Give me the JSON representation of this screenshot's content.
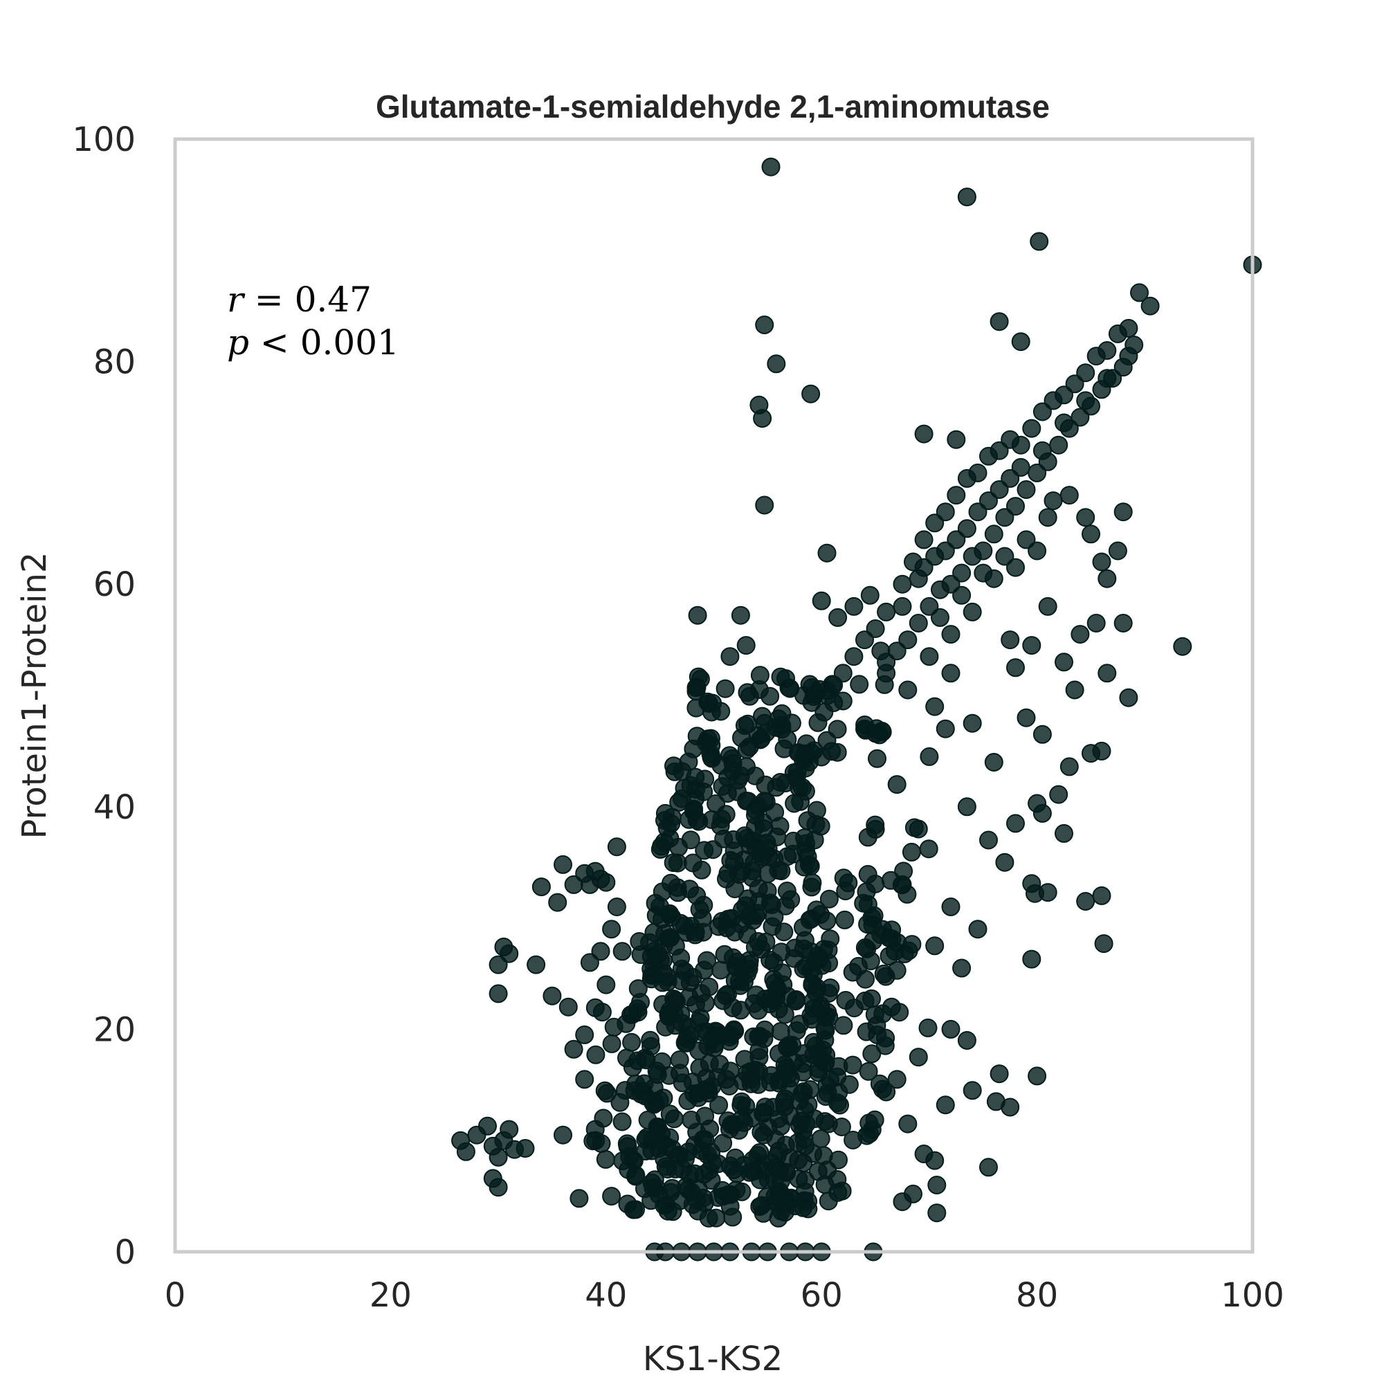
{
  "chart_data": {
    "type": "scatter",
    "title": "Glutamate-1-semialdehyde 2,1-aminomutase",
    "xlabel": "KS1-KS2",
    "ylabel": "Protein1-Protein2",
    "xlim": [
      0,
      100
    ],
    "ylim": [
      0,
      100
    ],
    "xticks": [
      "0",
      "20",
      "40",
      "60",
      "80",
      "100"
    ],
    "yticks": [
      "0",
      "20",
      "40",
      "60",
      "80",
      "100"
    ],
    "grid": false,
    "marker_color": "#041c1c",
    "frame_color": "#cccccc",
    "annotation": {
      "r_var": "r",
      "r_rest": " = 0.47",
      "p_var": "p",
      "p_rest": " < 0.001"
    },
    "series": [
      {
        "outliers": [
          [
            55.3,
            97.5
          ],
          [
            73.5,
            94.8
          ],
          [
            80.2,
            90.8
          ],
          [
            100,
            88.7
          ],
          [
            89.5,
            86.2
          ],
          [
            90.5,
            85.0
          ],
          [
            54.7,
            83.3
          ],
          [
            76.5,
            83.6
          ],
          [
            78.5,
            81.8
          ],
          [
            55.8,
            79.8
          ],
          [
            59.0,
            77.1
          ],
          [
            54.2,
            76.1
          ],
          [
            54.5,
            74.9
          ],
          [
            69.5,
            73.5
          ],
          [
            72.5,
            73.0
          ],
          [
            54.7,
            67.1
          ],
          [
            60.5,
            62.8
          ],
          [
            48.5,
            57.2
          ],
          [
            52.5,
            57.2
          ],
          [
            53.0,
            54.5
          ],
          [
            51.5,
            53.5
          ],
          [
            93.5,
            54.4
          ],
          [
            88.5,
            49.8
          ],
          [
            86.0,
            45.0
          ],
          [
            85.0,
            44.8
          ],
          [
            83.0,
            43.6
          ],
          [
            82.0,
            41.1
          ],
          [
            80.0,
            40.3
          ],
          [
            80.5,
            39.4
          ],
          [
            82.5,
            37.6
          ],
          [
            79.5,
            33.1
          ],
          [
            79.8,
            32.2
          ],
          [
            81.0,
            32.3
          ],
          [
            84.5,
            31.5
          ],
          [
            86.0,
            32.0
          ],
          [
            86.2,
            27.7
          ],
          [
            79.5,
            26.3
          ],
          [
            80.0,
            15.8
          ],
          [
            76.5,
            16.0
          ],
          [
            76.2,
            13.5
          ],
          [
            77.5,
            13.0
          ],
          [
            75.5,
            7.6
          ],
          [
            70.5,
            8.2
          ],
          [
            69.5,
            8.8
          ],
          [
            70.7,
            6.0
          ],
          [
            70.7,
            3.5
          ],
          [
            68.5,
            5.2
          ],
          [
            67.5,
            4.5
          ],
          [
            64.8,
            0
          ],
          [
            60.0,
            0
          ],
          [
            58.5,
            0
          ],
          [
            57.0,
            0
          ],
          [
            55.0,
            0
          ],
          [
            53.5,
            0
          ],
          [
            51.5,
            0
          ],
          [
            50.0,
            0
          ],
          [
            48.5,
            0
          ],
          [
            47.0,
            0
          ],
          [
            45.5,
            0
          ],
          [
            44.5,
            0
          ],
          [
            26.5,
            10.0
          ],
          [
            27.0,
            9.0
          ],
          [
            28.0,
            10.5
          ],
          [
            29.0,
            11.3
          ],
          [
            29.5,
            9.5
          ],
          [
            30.0,
            8.5
          ],
          [
            30.5,
            10.0
          ],
          [
            31.0,
            11.0
          ],
          [
            31.5,
            9.2
          ],
          [
            32.5,
            9.3
          ],
          [
            29.5,
            6.6
          ],
          [
            30.0,
            5.8
          ],
          [
            30.5,
            27.4
          ],
          [
            30.0,
            25.8
          ],
          [
            31.0,
            26.8
          ],
          [
            30.0,
            23.2
          ],
          [
            34.0,
            32.8
          ],
          [
            35.5,
            31.4
          ],
          [
            36.0,
            34.8
          ],
          [
            37.0,
            33.0
          ],
          [
            38.0,
            34.0
          ],
          [
            38.5,
            33.0
          ],
          [
            39.0,
            34.2
          ],
          [
            39.5,
            33.5
          ],
          [
            40.0,
            33.2
          ],
          [
            41.0,
            36.4
          ],
          [
            40.5,
            29.0
          ],
          [
            41.0,
            31.0
          ],
          [
            33.5,
            25.8
          ],
          [
            35.0,
            23.0
          ],
          [
            36.5,
            22.0
          ],
          [
            37.0,
            18.2
          ],
          [
            38.0,
            19.5
          ],
          [
            38.5,
            26.0
          ],
          [
            39.5,
            27.0
          ],
          [
            40.0,
            24.0
          ],
          [
            41.5,
            27.0
          ],
          [
            38.0,
            15.5
          ],
          [
            36.0,
            10.5
          ],
          [
            37.5,
            4.8
          ],
          [
            39.0,
            11.0
          ],
          [
            40.5,
            5.0
          ],
          [
            42.0,
            4.3
          ],
          [
            64.0,
            47.0
          ],
          [
            66.0,
            52.0
          ],
          [
            68.0,
            50.5
          ],
          [
            70.5,
            49.0
          ],
          [
            72.0,
            52.0
          ],
          [
            74.0,
            47.5
          ],
          [
            76.0,
            44.0
          ],
          [
            73.5,
            40.0
          ],
          [
            75.5,
            37.0
          ],
          [
            78.0,
            38.5
          ],
          [
            77.0,
            35.0
          ],
          [
            72.0,
            31.0
          ],
          [
            70.5,
            27.5
          ],
          [
            73.0,
            25.5
          ],
          [
            74.5,
            29.0
          ],
          [
            72.0,
            20.0
          ],
          [
            73.5,
            19.0
          ],
          [
            74.0,
            14.5
          ],
          [
            71.5,
            13.2
          ],
          [
            68.0,
            11.5
          ],
          [
            67.0,
            15.5
          ],
          [
            69.0,
            17.5
          ],
          [
            66.5,
            22.0
          ],
          [
            65.5,
            28.5
          ],
          [
            67.5,
            33.0
          ],
          [
            69.0,
            38.0
          ],
          [
            67.0,
            42.0
          ],
          [
            70.0,
            44.5
          ],
          [
            71.5,
            47.0
          ],
          [
            85.5,
            56.5
          ],
          [
            84.0,
            55.5
          ],
          [
            86.5,
            52.0
          ],
          [
            88.0,
            56.5
          ],
          [
            82.5,
            53.0
          ],
          [
            81.0,
            58.0
          ],
          [
            79.5,
            54.5
          ],
          [
            77.5,
            55.0
          ],
          [
            78.0,
            52.5
          ],
          [
            79.0,
            48.0
          ],
          [
            80.5,
            46.5
          ],
          [
            83.5,
            50.5
          ],
          [
            84.5,
            66.0
          ],
          [
            86.0,
            62.0
          ],
          [
            87.5,
            63.0
          ],
          [
            85.0,
            64.5
          ],
          [
            88.0,
            66.5
          ],
          [
            86.5,
            60.5
          ]
        ],
        "diagonal": [
          [
            60.0,
            58.5
          ],
          [
            61.5,
            57.0
          ],
          [
            63.0,
            58.0
          ],
          [
            64.5,
            59.0
          ],
          [
            66.0,
            57.5
          ],
          [
            67.5,
            60.0
          ],
          [
            68.5,
            62.0
          ],
          [
            69.5,
            64.0
          ],
          [
            70.5,
            65.5
          ],
          [
            71.5,
            66.5
          ],
          [
            72.5,
            68.0
          ],
          [
            73.5,
            69.5
          ],
          [
            74.5,
            70.0
          ],
          [
            75.5,
            71.5
          ],
          [
            76.5,
            72.0
          ],
          [
            77.5,
            73.0
          ],
          [
            78.5,
            72.5
          ],
          [
            79.5,
            74.0
          ],
          [
            80.5,
            75.5
          ],
          [
            81.5,
            76.5
          ],
          [
            82.5,
            77.0
          ],
          [
            83.5,
            78.0
          ],
          [
            84.5,
            79.0
          ],
          [
            85.5,
            80.5
          ],
          [
            86.5,
            81.0
          ],
          [
            87.5,
            82.5
          ],
          [
            88.5,
            83.0
          ],
          [
            89.0,
            81.5
          ],
          [
            88.0,
            79.5
          ],
          [
            87.0,
            78.5
          ],
          [
            86.0,
            77.5
          ],
          [
            85.0,
            76.0
          ],
          [
            84.0,
            75.0
          ],
          [
            83.0,
            74.0
          ],
          [
            82.0,
            72.5
          ],
          [
            81.0,
            71.0
          ],
          [
            80.0,
            70.0
          ],
          [
            79.0,
            68.5
          ],
          [
            78.0,
            67.0
          ],
          [
            77.0,
            66.0
          ],
          [
            76.0,
            64.5
          ],
          [
            75.0,
            63.0
          ],
          [
            74.0,
            62.5
          ],
          [
            73.0,
            61.0
          ],
          [
            72.0,
            60.0
          ],
          [
            71.0,
            59.5
          ],
          [
            70.0,
            58.0
          ],
          [
            69.0,
            56.5
          ],
          [
            68.0,
            55.0
          ],
          [
            67.0,
            54.0
          ],
          [
            66.0,
            53.0
          ],
          [
            65.0,
            56.0
          ],
          [
            64.0,
            55.0
          ],
          [
            63.0,
            53.5
          ],
          [
            62.0,
            52.0
          ],
          [
            61.0,
            51.0
          ],
          [
            70.5,
            62.5
          ],
          [
            72.5,
            64.0
          ],
          [
            74.5,
            66.5
          ],
          [
            76.5,
            68.5
          ],
          [
            78.5,
            70.5
          ],
          [
            80.5,
            72.0
          ],
          [
            82.5,
            74.5
          ],
          [
            84.5,
            76.5
          ],
          [
            86.5,
            78.5
          ],
          [
            88.5,
            80.5
          ],
          [
            71.0,
            57.0
          ],
          [
            73.0,
            59.0
          ],
          [
            75.0,
            61.0
          ],
          [
            77.0,
            62.5
          ],
          [
            79.0,
            64.0
          ],
          [
            81.0,
            66.0
          ],
          [
            83.0,
            68.0
          ],
          [
            69.0,
            60.5
          ],
          [
            67.5,
            58.0
          ],
          [
            65.5,
            54.0
          ],
          [
            63.5,
            51.0
          ],
          [
            62.0,
            49.5
          ],
          [
            76.0,
            60.5
          ],
          [
            78.0,
            61.5
          ],
          [
            80.0,
            63.0
          ],
          [
            74.0,
            57.5
          ],
          [
            72.0,
            55.5
          ],
          [
            70.0,
            53.5
          ],
          [
            75.5,
            67.5
          ],
          [
            77.5,
            69.5
          ],
          [
            73.5,
            65.0
          ],
          [
            71.5,
            63.0
          ],
          [
            69.5,
            61.5
          ],
          [
            81.5,
            67.5
          ]
        ],
        "dense_core": [
          [
            44,
            3,
            62,
            8,
            90
          ],
          [
            44,
            8,
            62,
            16,
            120
          ],
          [
            44,
            16,
            61,
            24,
            120
          ],
          [
            44,
            24,
            61,
            32,
            110
          ],
          [
            45,
            32,
            60,
            40,
            90
          ],
          [
            46,
            40,
            59,
            46,
            60
          ],
          [
            48,
            46,
            58,
            52,
            40
          ],
          [
            42,
            3,
            46,
            28,
            40
          ],
          [
            60,
            10,
            66,
            36,
            50
          ],
          [
            62,
            20,
            70,
            40,
            30
          ],
          [
            58,
            44,
            66,
            52,
            30
          ],
          [
            38,
            8,
            44,
            22,
            30
          ]
        ]
      }
    ]
  }
}
